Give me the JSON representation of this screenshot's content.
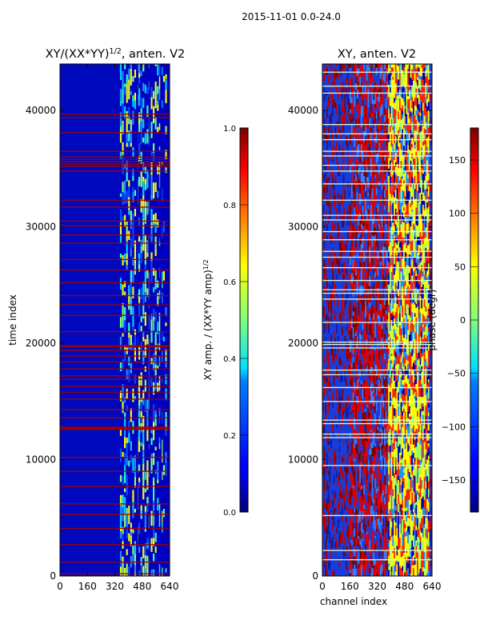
{
  "chart_data": [
    {
      "type": "heatmap",
      "title": "XY/(XX*YY)^1/2, anten. V2",
      "title_text": "XY/(XX*YY)",
      "title_superscript": "1/2",
      "title_suffix": ", anten. V2",
      "xlabel": "",
      "ylabel": "time index",
      "xlim": [
        0,
        640
      ],
      "ylim": [
        0,
        44000
      ],
      "xticks": [
        0,
        160,
        320,
        480,
        640
      ],
      "yticks": [
        0,
        10000,
        20000,
        30000,
        40000
      ],
      "colormap": "jet",
      "colorbar": {
        "label": "XY amp. / (XX*YY amp)^1/2",
        "label_text": "XY amp. / (XX*YY amp)",
        "label_superscript": "1/2",
        "range": [
          0.0,
          1.0
        ],
        "ticks": [
          "0.0",
          "0.2",
          "0.4",
          "0.6",
          "0.8",
          "1.0"
        ]
      },
      "saturated_rows": [
        200,
        1200,
        2700,
        4100,
        5300,
        6200,
        7700,
        9000,
        10200,
        12600,
        12700,
        12800,
        13600,
        14300,
        15200,
        15800,
        16300,
        16900,
        17200,
        17800,
        18400,
        18900,
        19400,
        19700,
        19800,
        21000,
        22400,
        23300,
        24100,
        25200,
        26300,
        27200,
        28600,
        29300,
        30100,
        30500,
        31700,
        32300,
        34800,
        35200,
        35400,
        35600,
        35800,
        36000,
        36500,
        38100,
        39400,
        39700
      ]
    },
    {
      "type": "heatmap",
      "title": "XY, anten. V2",
      "xlabel": "channel index",
      "ylabel": "",
      "xlim": [
        0,
        640
      ],
      "ylim": [
        0,
        44000
      ],
      "xticks": [
        0,
        160,
        320,
        480,
        640
      ],
      "yticks": [
        0,
        10000,
        20000,
        30000,
        40000
      ],
      "colormap": "jet",
      "colorbar": {
        "label": "phase (degr)",
        "range": [
          -180,
          180
        ],
        "ticks": [
          "−150",
          "−100",
          "−50",
          "0",
          "50",
          "100",
          "150"
        ]
      },
      "blank_rows": [
        1400,
        2200,
        5200,
        9500,
        11900,
        12200,
        13100,
        13400,
        15000,
        16200,
        17300,
        17700,
        19600,
        19900,
        20100,
        21800,
        23800,
        24300,
        24600,
        25400,
        26500,
        27400,
        27900,
        28900,
        29600,
        30600,
        31000,
        32300,
        33700,
        34800,
        35300,
        36100,
        36500,
        37500,
        38000,
        38800,
        41500,
        42100,
        43300
      ]
    }
  ],
  "suptitle": "2015-11-01 0.0-24.0"
}
